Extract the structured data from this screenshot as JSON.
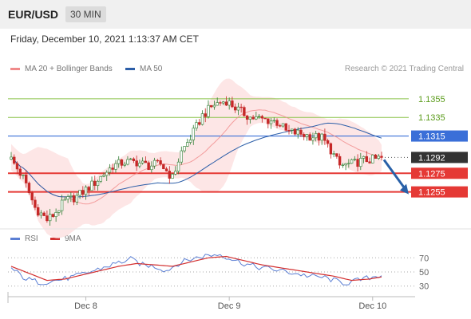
{
  "header": {
    "pair": "EUR/USD",
    "timeframe": "30 MIN"
  },
  "datetime": "Friday, December 10, 2021 1:13:37 AM CET",
  "legend": {
    "ma20": "MA 20 + Bollinger Bands",
    "ma50": "MA 50",
    "ma20_color": "#f08a8a",
    "ma50_color": "#2c5ea8"
  },
  "copyright": "Research © 2021 Trading Central",
  "colors": {
    "up": "#2e7d32",
    "down": "#c62828",
    "resistance": "#8bc34a",
    "pivot": "#3a6fd8",
    "support": "#e53935",
    "arrow": "#2860a8",
    "band": "#fde0e0"
  },
  "chart_data": [
    {
      "type": "candlestick",
      "ylim": [
        1.1217,
        1.1384
      ],
      "x_ticks": [
        {
          "label": "Dec 8",
          "index": 25
        },
        {
          "label": "Dec 9",
          "index": 73
        },
        {
          "label": "Dec 10",
          "index": 121
        }
      ],
      "anchors": [
        [
          0,
          1.129
        ],
        [
          4,
          1.127
        ],
        [
          8,
          1.1238
        ],
        [
          12,
          1.1225
        ],
        [
          14,
          1.123
        ],
        [
          18,
          1.1245
        ],
        [
          22,
          1.125
        ],
        [
          28,
          1.1265
        ],
        [
          34,
          1.1283
        ],
        [
          38,
          1.1287
        ],
        [
          42,
          1.1287
        ],
        [
          46,
          1.1283
        ],
        [
          50,
          1.1285
        ],
        [
          54,
          1.127
        ],
        [
          57,
          1.1298
        ],
        [
          60,
          1.1313
        ],
        [
          64,
          1.1337
        ],
        [
          68,
          1.1349
        ],
        [
          72,
          1.1353
        ],
        [
          76,
          1.1343
        ],
        [
          80,
          1.1335
        ],
        [
          84,
          1.1333
        ],
        [
          88,
          1.1331
        ],
        [
          90,
          1.1328
        ],
        [
          92,
          1.132
        ],
        [
          96,
          1.1318
        ],
        [
          100,
          1.1315
        ],
        [
          104,
          1.1313
        ],
        [
          107,
          1.13
        ],
        [
          110,
          1.1283
        ],
        [
          114,
          1.1285
        ],
        [
          118,
          1.1289
        ],
        [
          122,
          1.129
        ],
        [
          124,
          1.1292
        ]
      ],
      "levels": [
        {
          "label": "1.1355",
          "value": 1.1355,
          "kind": "resistance"
        },
        {
          "label": "1.1335",
          "value": 1.1335,
          "kind": "resistance"
        },
        {
          "label": "1.1315",
          "value": 1.1315,
          "kind": "pivot"
        },
        {
          "label": "1.1292",
          "value": 1.1292,
          "kind": "current"
        },
        {
          "label": "1.1275",
          "value": 1.1275,
          "kind": "support"
        },
        {
          "label": "1.1255",
          "value": 1.1255,
          "kind": "support"
        }
      ],
      "projection": {
        "from": 1.1292,
        "to": 1.1255
      }
    },
    {
      "type": "line",
      "legend": {
        "rsi": "RSI",
        "ma9": "9MA",
        "rsi_color": "#5b7fd4",
        "ma9_color": "#d32f2f"
      },
      "ylim": [
        15,
        85
      ],
      "levels": [
        {
          "label": "70",
          "value": 70
        },
        {
          "label": "50",
          "value": 50
        },
        {
          "label": "30",
          "value": 30
        }
      ],
      "rsi_anchors": [
        [
          0,
          55
        ],
        [
          5,
          40
        ],
        [
          10,
          35
        ],
        [
          15,
          38
        ],
        [
          20,
          42
        ],
        [
          25,
          48
        ],
        [
          30,
          55
        ],
        [
          35,
          62
        ],
        [
          40,
          68
        ],
        [
          44,
          60
        ],
        [
          48,
          58
        ],
        [
          52,
          52
        ],
        [
          56,
          62
        ],
        [
          60,
          68
        ],
        [
          65,
          73
        ],
        [
          70,
          75
        ],
        [
          74,
          68
        ],
        [
          78,
          62
        ],
        [
          82,
          57
        ],
        [
          86,
          55
        ],
        [
          90,
          52
        ],
        [
          95,
          48
        ],
        [
          100,
          44
        ],
        [
          105,
          42
        ],
        [
          108,
          38
        ],
        [
          112,
          34
        ],
        [
          116,
          38
        ],
        [
          120,
          42
        ],
        [
          124,
          46
        ]
      ],
      "ma9_anchors": [
        [
          0,
          58
        ],
        [
          6,
          48
        ],
        [
          12,
          38
        ],
        [
          18,
          40
        ],
        [
          24,
          46
        ],
        [
          30,
          52
        ],
        [
          36,
          58
        ],
        [
          42,
          62
        ],
        [
          48,
          60
        ],
        [
          54,
          58
        ],
        [
          60,
          64
        ],
        [
          66,
          70
        ],
        [
          72,
          72
        ],
        [
          78,
          66
        ],
        [
          84,
          60
        ],
        [
          90,
          56
        ],
        [
          96,
          52
        ],
        [
          102,
          48
        ],
        [
          108,
          44
        ],
        [
          114,
          38
        ],
        [
          120,
          40
        ],
        [
          124,
          43
        ]
      ]
    }
  ]
}
